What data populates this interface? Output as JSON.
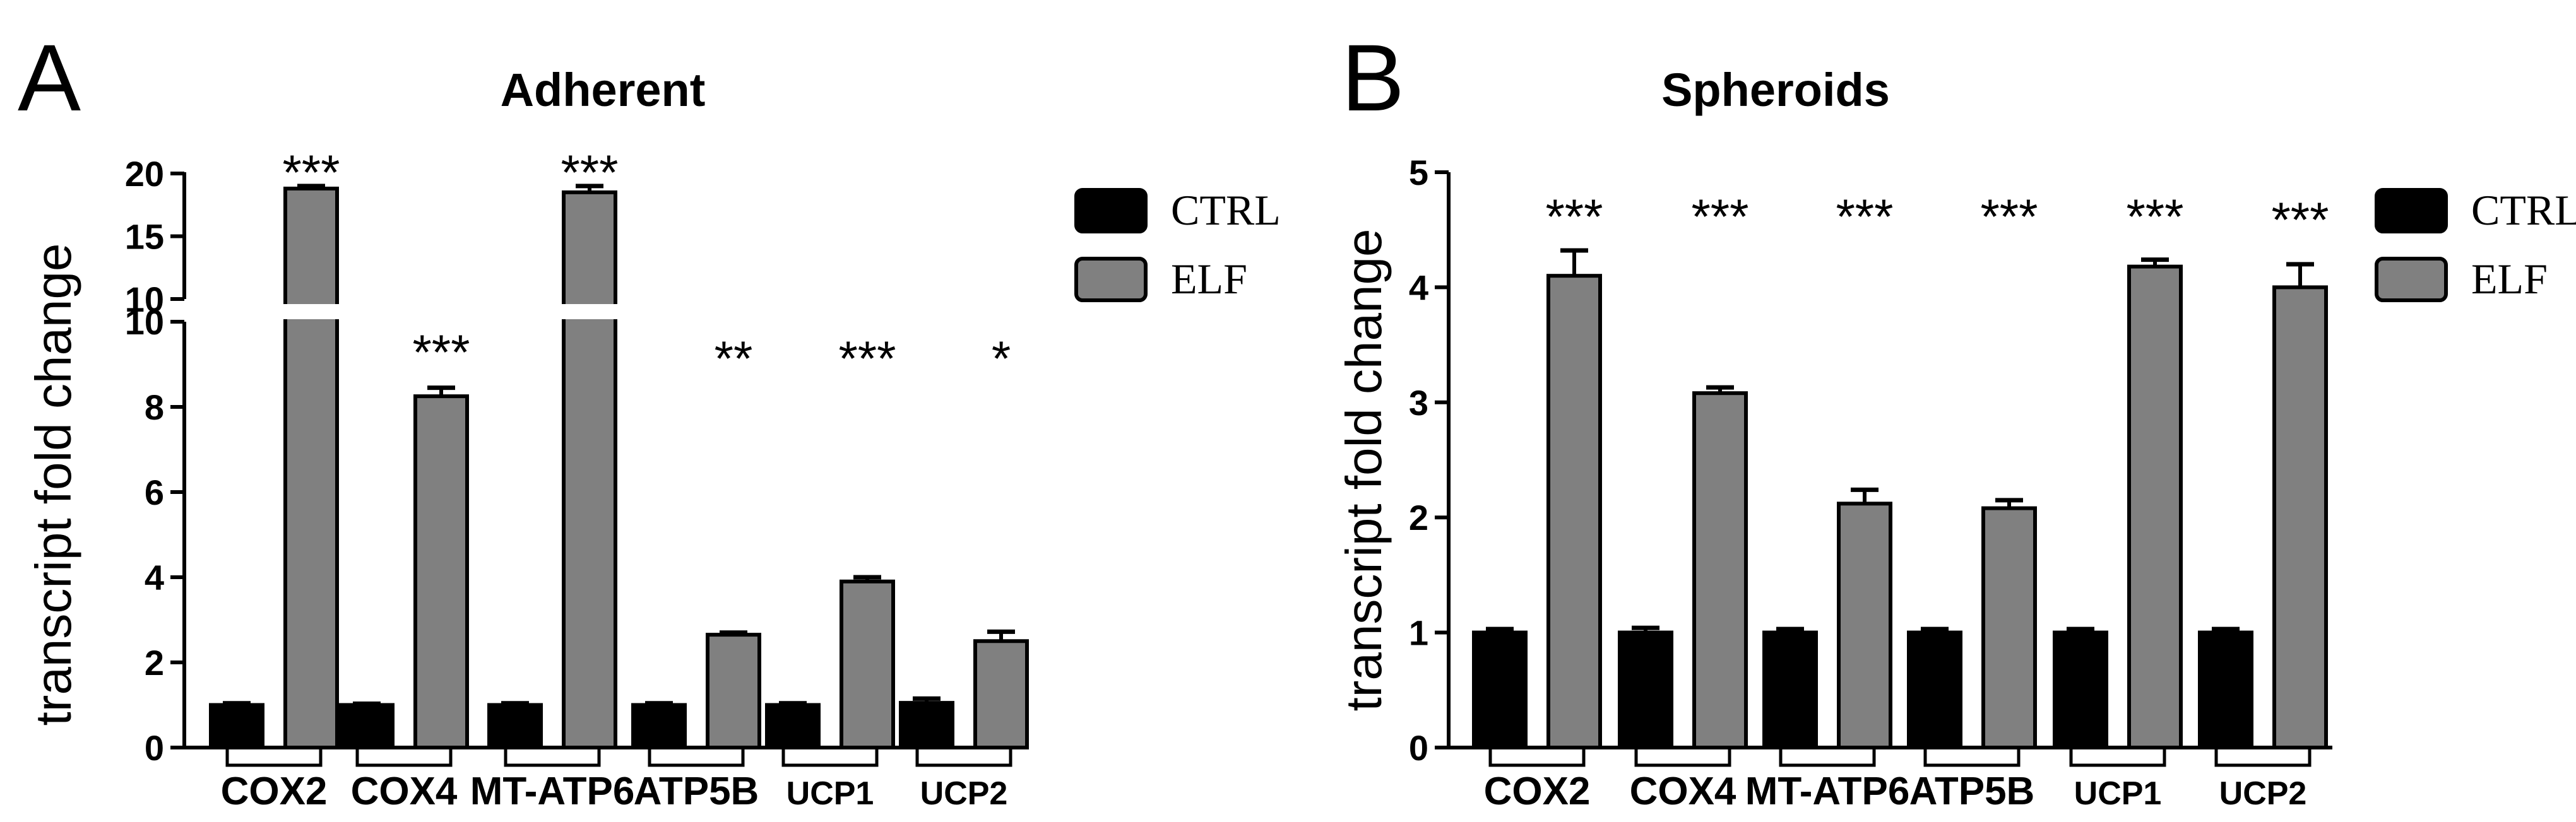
{
  "panel_labels": [
    "A",
    "B"
  ],
  "chart_data": [
    {
      "type": "bar",
      "title": "Adherent",
      "xlabel": "",
      "ylabel": "transcript fold change",
      "categories": [
        "COX2",
        "COX4",
        "MT-ATP6",
        "ATP5B",
        "UCP1",
        "UCP2"
      ],
      "series": [
        {
          "name": "CTRL",
          "color": "#000000",
          "values": [
            1.0,
            1.0,
            1.0,
            1.0,
            1.0,
            1.05
          ],
          "errors": [
            0.04,
            0.03,
            0.04,
            0.04,
            0.04,
            0.1
          ]
        },
        {
          "name": "ELF",
          "color": "#808080",
          "values": [
            18.8,
            8.25,
            18.5,
            2.65,
            3.9,
            2.5
          ],
          "errors": [
            0.2,
            0.2,
            0.5,
            0.05,
            0.1,
            0.22
          ]
        }
      ],
      "significance": [
        "***",
        "***",
        "***",
        "**",
        "***",
        "*"
      ],
      "yaxis": {
        "broken": true,
        "lower": {
          "range": [
            0,
            10
          ],
          "ticks": [
            "0",
            "2",
            "4",
            "6",
            "8",
            "10"
          ]
        },
        "upper": {
          "range": [
            10,
            20
          ],
          "ticks": [
            "10",
            "15",
            "20"
          ]
        }
      },
      "legend_position": "right"
    },
    {
      "type": "bar",
      "title": "Spheroids",
      "xlabel": "",
      "ylabel": "transcript fold change",
      "categories": [
        "COX2",
        "COX4",
        "MT-ATP6",
        "ATP5B",
        "UCP1",
        "UCP2"
      ],
      "series": [
        {
          "name": "CTRL",
          "color": "#000000",
          "values": [
            1.0,
            1.0,
            1.0,
            1.0,
            1.0,
            1.0
          ],
          "errors": [
            0.03,
            0.04,
            0.03,
            0.03,
            0.03,
            0.03
          ]
        },
        {
          "name": "ELF",
          "color": "#808080",
          "values": [
            4.1,
            3.08,
            2.12,
            2.08,
            4.18,
            4.0
          ],
          "errors": [
            0.22,
            0.05,
            0.12,
            0.07,
            0.06,
            0.2
          ]
        }
      ],
      "significance": [
        "***",
        "***",
        "***",
        "***",
        "***",
        "***"
      ],
      "yaxis": {
        "broken": false,
        "range": [
          0,
          5
        ],
        "ticks": [
          "0",
          "1",
          "2",
          "3",
          "4",
          "5"
        ]
      },
      "legend_position": "right"
    }
  ]
}
